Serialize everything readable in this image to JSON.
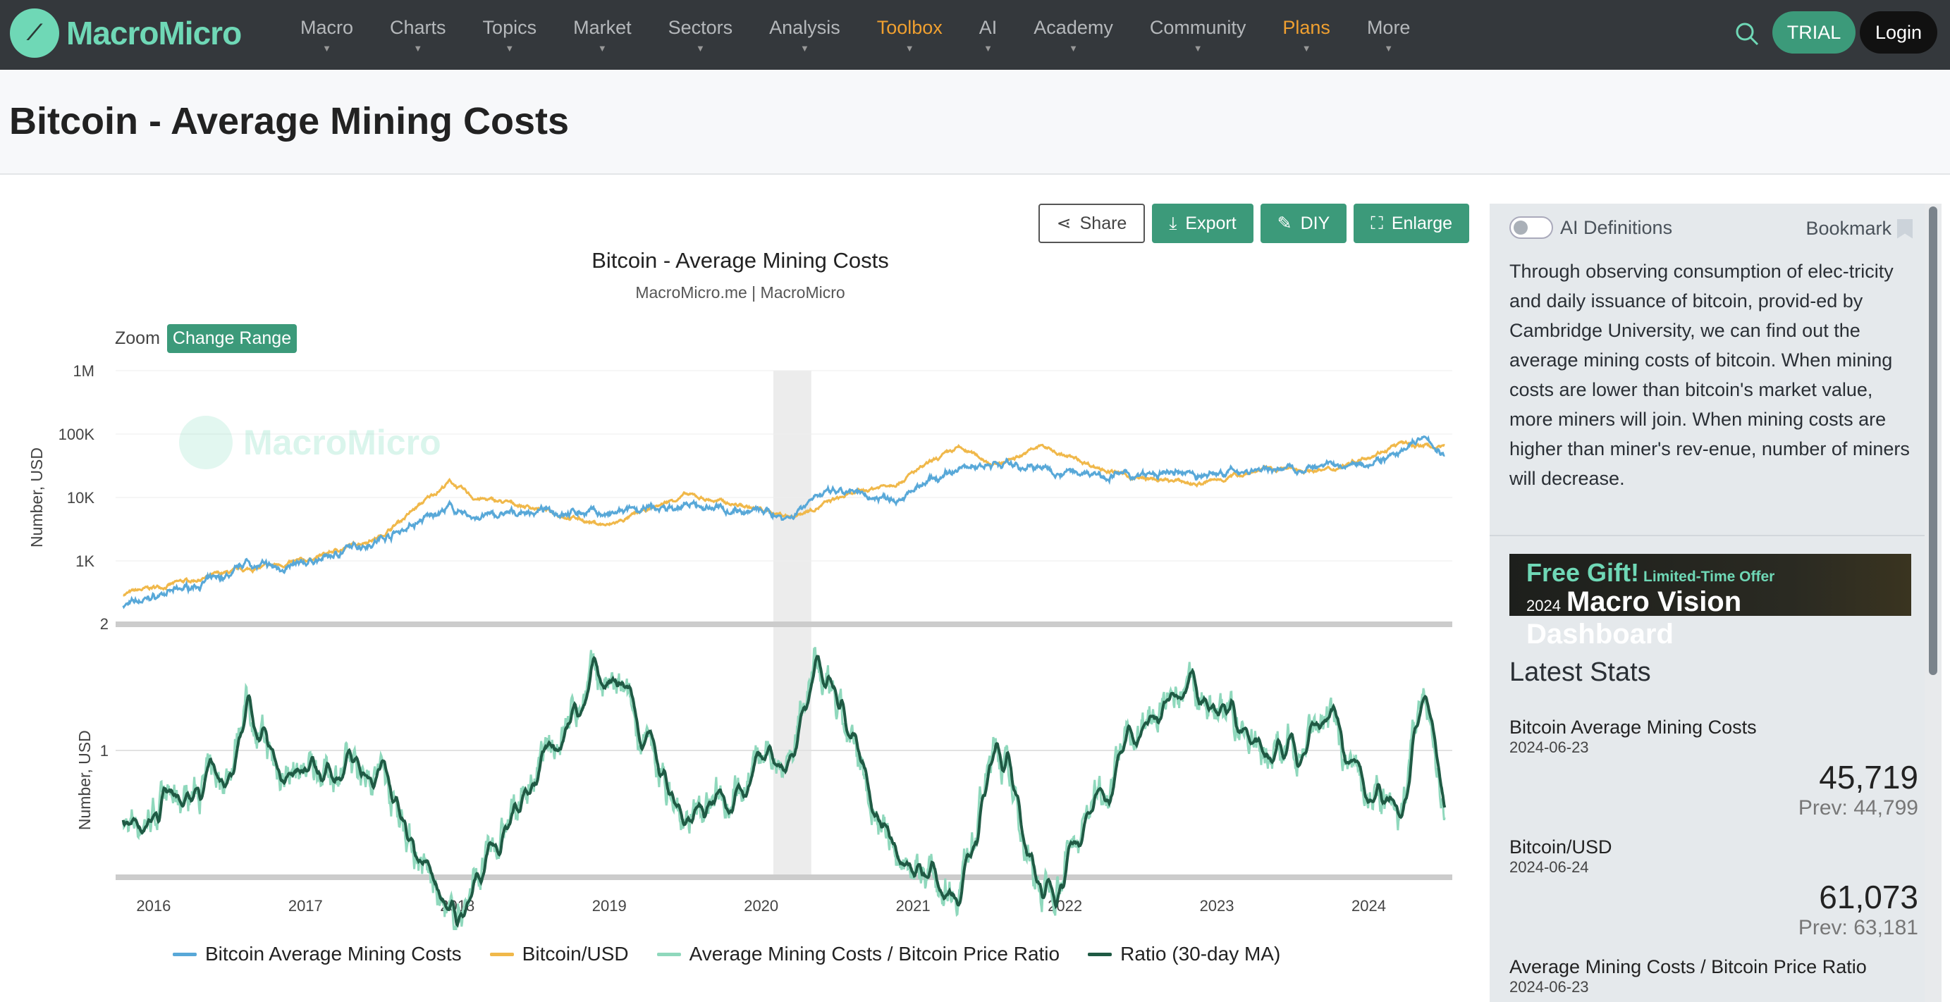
{
  "nav": {
    "brand": "MacroMicro",
    "items": [
      {
        "label": "Macro"
      },
      {
        "label": "Charts"
      },
      {
        "label": "Topics"
      },
      {
        "label": "Market"
      },
      {
        "label": "Sectors"
      },
      {
        "label": "Analysis"
      },
      {
        "label": "Toolbox",
        "highlight": true
      },
      {
        "label": "AI"
      },
      {
        "label": "Academy"
      },
      {
        "label": "Community"
      },
      {
        "label": "Plans",
        "highlight": true
      },
      {
        "label": "More"
      }
    ],
    "trial": "TRIAL",
    "login": "Login"
  },
  "page": {
    "title": "Bitcoin - Average Mining Costs"
  },
  "toolbar": {
    "share": "Share",
    "export": "Export",
    "diy": "DIY",
    "enlarge": "Enlarge"
  },
  "zoom": {
    "label": "Zoom",
    "change_range": "Change Range"
  },
  "sidebar": {
    "ai_definitions": "AI Definitions",
    "bookmark": "Bookmark",
    "description": "Through observing consumption of elec-tricity and daily issuance of bitcoin, provid-ed by Cambridge University, we can find out the average mining costs of bitcoin. When mining costs are lower than bitcoin's market value, more miners will join. When mining costs are higher than miner's rev-enue, number of miners will decrease.",
    "ad": {
      "free_gift": "Free Gift!",
      "offer": "Limited-Time Offer",
      "year": "2024",
      "product": "Macro Vision Dashboard"
    },
    "latest_stats_title": "Latest Stats",
    "stats": [
      {
        "name": "Bitcoin Average Mining Costs",
        "date": "2024-06-23",
        "value": "45,719",
        "prev": "Prev: 44,799"
      },
      {
        "name": "Bitcoin/USD",
        "date": "2024-06-24",
        "value": "61,073",
        "prev": "Prev: 63,181"
      },
      {
        "name": "Average Mining Costs / Bitcoin Price Ratio",
        "date": "2024-06-23"
      }
    ]
  },
  "colors": {
    "cost": "#58a8d8",
    "price": "#f0b84a",
    "ratio": "#8fd8bc",
    "ma": "#1f5a44",
    "accent": "#3c9a7a"
  },
  "chart_data": {
    "type": "line",
    "title": "Bitcoin - Average Mining Costs",
    "subtitle": "MacroMicro.me | MacroMicro",
    "watermark": "MacroMicro",
    "x_ticks": [
      "2016",
      "2017",
      "2018",
      "2019",
      "2020",
      "2021",
      "2022",
      "2023",
      "2024"
    ],
    "xlim": [
      2015.75,
      2024.55
    ],
    "top_panel": {
      "ylabel": "Number, USD",
      "scale": "log",
      "ylim": [
        100,
        1000000
      ],
      "y_ticks": [
        "1M",
        "100K",
        "10K",
        "1K"
      ]
    },
    "bottom_panel": {
      "ylabel": "Number, USD",
      "scale": "log",
      "ylim": [
        0.5,
        2
      ],
      "y_ticks": [
        "2",
        "1"
      ]
    },
    "shaded_range": [
      2020.08,
      2020.33
    ],
    "price_keyframes": [
      [
        2015.8,
        300
      ],
      [
        2016.5,
        650
      ],
      [
        2017.0,
        1000
      ],
      [
        2017.5,
        2500
      ],
      [
        2017.95,
        18000
      ],
      [
        2018.1,
        10000
      ],
      [
        2018.5,
        7000
      ],
      [
        2018.9,
        4000
      ],
      [
        2019.0,
        3600
      ],
      [
        2019.5,
        11000
      ],
      [
        2019.9,
        7200
      ],
      [
        2020.2,
        5000
      ],
      [
        2020.5,
        9500
      ],
      [
        2020.9,
        18000
      ],
      [
        2021.3,
        60000
      ],
      [
        2021.55,
        33000
      ],
      [
        2021.85,
        65000
      ],
      [
        2022.0,
        45000
      ],
      [
        2022.45,
        20000
      ],
      [
        2022.9,
        16500
      ],
      [
        2023.3,
        28000
      ],
      [
        2023.75,
        27000
      ],
      [
        2023.95,
        42000
      ],
      [
        2024.2,
        70000
      ],
      [
        2024.45,
        62000
      ],
      [
        2024.5,
        61073
      ]
    ],
    "ratio_keyframes": [
      [
        2015.8,
        0.65
      ],
      [
        2016.5,
        0.9
      ],
      [
        2016.6,
        1.35
      ],
      [
        2016.8,
        0.9
      ],
      [
        2017.5,
        0.9
      ],
      [
        2017.95,
        0.38
      ],
      [
        2018.5,
        0.85
      ],
      [
        2018.9,
        1.5
      ],
      [
        2019.1,
        1.3
      ],
      [
        2019.5,
        0.65
      ],
      [
        2019.9,
        0.9
      ],
      [
        2020.2,
        1.0
      ],
      [
        2020.35,
        1.6
      ],
      [
        2020.9,
        0.55
      ],
      [
        2021.3,
        0.48
      ],
      [
        2021.55,
        1.05
      ],
      [
        2021.85,
        0.45
      ],
      [
        2022.45,
        1.1
      ],
      [
        2022.85,
        1.4
      ],
      [
        2023.3,
        1.0
      ],
      [
        2023.75,
        1.1
      ],
      [
        2024.2,
        0.65
      ],
      [
        2024.35,
        1.35
      ],
      [
        2024.5,
        0.75
      ]
    ],
    "series": [
      {
        "name": "Bitcoin Average Mining Costs",
        "last": 45719
      },
      {
        "name": "Bitcoin/USD",
        "last": 61073
      },
      {
        "name": "Average Mining Costs / Bitcoin Price Ratio"
      },
      {
        "name": "Ratio (30-day MA)"
      }
    ]
  }
}
